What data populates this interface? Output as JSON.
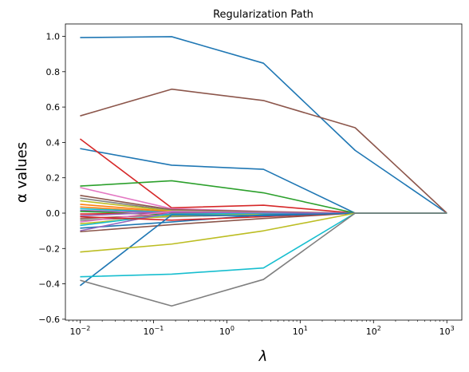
{
  "chart_data": {
    "type": "line",
    "title": "Regularization Path",
    "xlabel": "λ",
    "ylabel": "α values",
    "xscale": "log",
    "xlim": [
      0.0063,
      1600
    ],
    "ylim": [
      -0.605,
      1.07
    ],
    "grid": false,
    "legend": "none",
    "x": [
      0.01,
      0.177,
      3.16,
      56.2,
      1000
    ],
    "x_ticks": [
      {
        "value": 0.01,
        "base": "10",
        "exp": "−2"
      },
      {
        "value": 0.1,
        "base": "10",
        "exp": "−1"
      },
      {
        "value": 1,
        "base": "10",
        "exp": "0"
      },
      {
        "value": 10,
        "base": "10",
        "exp": "1"
      },
      {
        "value": 100,
        "base": "10",
        "exp": "2"
      },
      {
        "value": 1000,
        "base": "10",
        "exp": "3"
      }
    ],
    "y_ticks": [
      {
        "value": 1.0,
        "label": "1.0"
      },
      {
        "value": 0.8,
        "label": "0.8"
      },
      {
        "value": 0.6,
        "label": "0.6"
      },
      {
        "value": 0.4,
        "label": "0.4"
      },
      {
        "value": 0.2,
        "label": "0.2"
      },
      {
        "value": 0.0,
        "label": "0.0"
      },
      {
        "value": -0.2,
        "label": "−0.2"
      },
      {
        "value": -0.4,
        "label": "−0.4"
      },
      {
        "value": -0.6,
        "label": "−0.6"
      }
    ],
    "series": [
      {
        "color": "#1f77b4",
        "values": [
          0.993,
          0.998,
          0.848,
          0.355,
          0.0
        ]
      },
      {
        "color": "#8c564b",
        "values": [
          0.55,
          0.701,
          0.637,
          0.483,
          0.0
        ]
      },
      {
        "color": "#1f77b4",
        "values": [
          0.365,
          0.271,
          0.248,
          0.0,
          0.0
        ]
      },
      {
        "color": "#d62728",
        "values": [
          0.42,
          0.03,
          0.045,
          0.0,
          0.0
        ]
      },
      {
        "color": "#2ca02c",
        "values": [
          0.153,
          0.183,
          0.115,
          0.0,
          0.0
        ]
      },
      {
        "color": "#e377c2",
        "values": [
          0.145,
          0.025,
          0.01,
          0.0,
          0.0
        ]
      },
      {
        "color": "#8c564b",
        "values": [
          0.1,
          0.02,
          0.008,
          0.0,
          0.0
        ]
      },
      {
        "color": "#7f7f7f",
        "values": [
          0.085,
          0.015,
          0.005,
          0.0,
          0.0
        ]
      },
      {
        "color": "#bcbd22",
        "values": [
          0.07,
          0.012,
          0.004,
          0.0,
          0.0
        ]
      },
      {
        "color": "#ff7f0e",
        "values": [
          0.05,
          0.008,
          0.002,
          0.0,
          0.0
        ]
      },
      {
        "color": "#ff7f0e",
        "values": [
          0.035,
          0.005,
          0.001,
          0.0,
          0.0
        ]
      },
      {
        "color": "#17becf",
        "values": [
          0.025,
          0.005,
          0.001,
          0.0,
          0.0
        ]
      },
      {
        "color": "#9467bd",
        "values": [
          0.015,
          0.002,
          0.0,
          0.0,
          0.0
        ]
      },
      {
        "color": "#2ca02c",
        "values": [
          0.01,
          -0.01,
          -0.005,
          0.0,
          0.0
        ]
      },
      {
        "color": "#d62728",
        "values": [
          -0.005,
          0.001,
          0.0,
          0.0,
          0.0
        ]
      },
      {
        "color": "#9467bd",
        "values": [
          -0.015,
          0.008,
          0.002,
          0.0,
          0.0
        ]
      },
      {
        "color": "#8c564b",
        "values": [
          -0.03,
          -0.01,
          -0.004,
          0.0,
          0.0
        ]
      },
      {
        "color": "#7f7f7f",
        "values": [
          -0.04,
          -0.02,
          -0.008,
          0.0,
          0.0
        ]
      },
      {
        "color": "#e377c2",
        "values": [
          -0.05,
          0.01,
          0.003,
          0.0,
          0.0
        ]
      },
      {
        "color": "#bcbd22",
        "values": [
          -0.06,
          -0.015,
          -0.005,
          0.0,
          0.0
        ]
      },
      {
        "color": "#17becf",
        "values": [
          -0.07,
          -0.005,
          -0.002,
          0.0,
          0.0
        ]
      },
      {
        "color": "#1f77b4",
        "values": [
          -0.085,
          -0.05,
          -0.01,
          0.0,
          0.0
        ]
      },
      {
        "color": "#9467bd",
        "values": [
          -0.1,
          0.005,
          0.002,
          0.0,
          0.0
        ]
      },
      {
        "color": "#8c564b",
        "values": [
          -0.105,
          -0.065,
          -0.03,
          0.0,
          0.0
        ]
      },
      {
        "color": "#d62728",
        "values": [
          -0.02,
          -0.04,
          -0.02,
          0.0,
          0.0
        ]
      },
      {
        "color": "#1f77b4",
        "values": [
          -0.41,
          -0.01,
          -0.015,
          0.0,
          0.0
        ]
      },
      {
        "color": "#bcbd22",
        "values": [
          -0.22,
          -0.175,
          -0.1,
          0.0,
          0.0
        ]
      },
      {
        "color": "#17becf",
        "values": [
          -0.36,
          -0.345,
          -0.31,
          0.0,
          0.0
        ]
      },
      {
        "color": "#7f7f7f",
        "values": [
          -0.38,
          -0.525,
          -0.375,
          0.0,
          0.0
        ]
      }
    ]
  }
}
